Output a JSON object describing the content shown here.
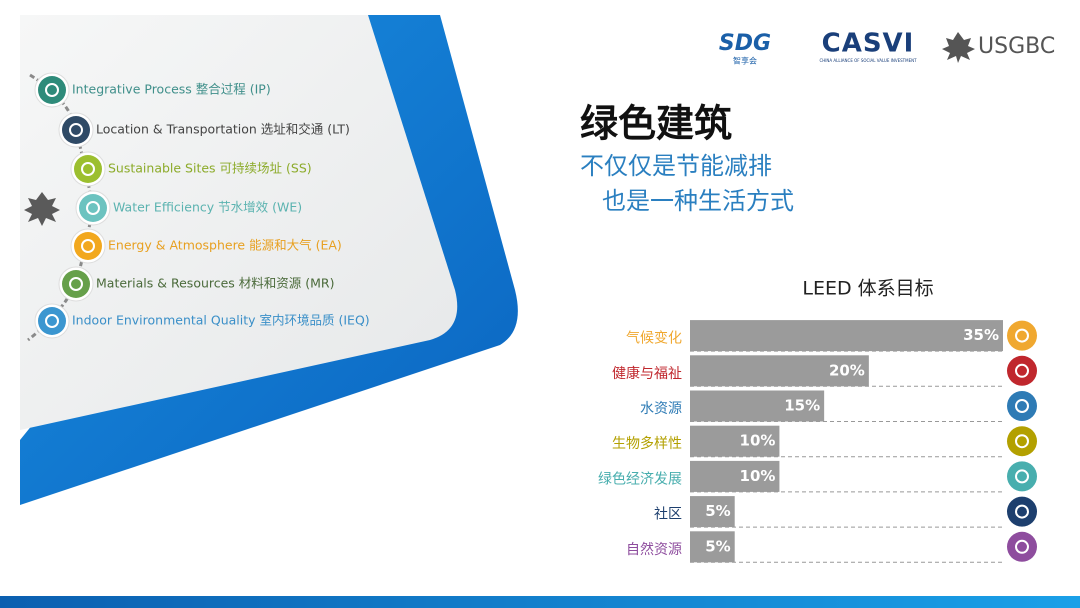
{
  "slide": {
    "logos": {
      "sdg": "SDG",
      "sdg_sub": "智享会",
      "casvi": "CASVI",
      "casvi_sub": "CHINA ALLIANCE OF SOCIAL VALUE INVESTMENT",
      "usgbc": "USGBC"
    },
    "title": "绿色建筑",
    "subtitle": [
      "不仅仅是节能减排",
      "也是一种生活方式"
    ],
    "items": [
      {
        "text": "Integrative Process 整合过程 (IP)",
        "color": "#3f8f8a",
        "icon_color": "#2e8b7a"
      },
      {
        "text": "Location & Transportation 选址和交通 (LT)",
        "color": "#444444",
        "icon_color": "#2f4a66"
      },
      {
        "text": "Sustainable Sites 可持续场址 (SS)",
        "color": "#8cab2a",
        "icon_color": "#9cbf2f"
      },
      {
        "text": "Water Efficiency 节水增效 (WE)",
        "color": "#5bb3b0",
        "icon_color": "#6cc3c0"
      },
      {
        "text": "Energy & Atmosphere 能源和大气 (EA)",
        "color": "#e8a020",
        "icon_color": "#f2a81e"
      },
      {
        "text": "Materials & Resources 材料和资源 (MR)",
        "color": "#4a6a3a",
        "icon_color": "#66a04a"
      },
      {
        "text": "Indoor Environmental Quality 室内环境品质 (IEQ)",
        "color": "#3a8fc8",
        "icon_color": "#3b96d0"
      }
    ]
  },
  "chart_data": {
    "type": "bar",
    "orientation": "horizontal",
    "title": "LEED 体系目标",
    "categories": [
      "气候变化",
      "健康与福祉",
      "水资源",
      "生物多样性",
      "绿色经济发展",
      "社区",
      "自然资源"
    ],
    "category_colors": [
      "#f0a830",
      "#c0272d",
      "#2e7bb5",
      "#b3a000",
      "#48aeae",
      "#1d3f6e",
      "#8e4d9e"
    ],
    "values": [
      35,
      20,
      15,
      10,
      10,
      5,
      5
    ],
    "value_labels": [
      "35%",
      "20%",
      "15%",
      "10%",
      "10%",
      "5%",
      "5%"
    ],
    "color": "#9b9b9b"
  }
}
